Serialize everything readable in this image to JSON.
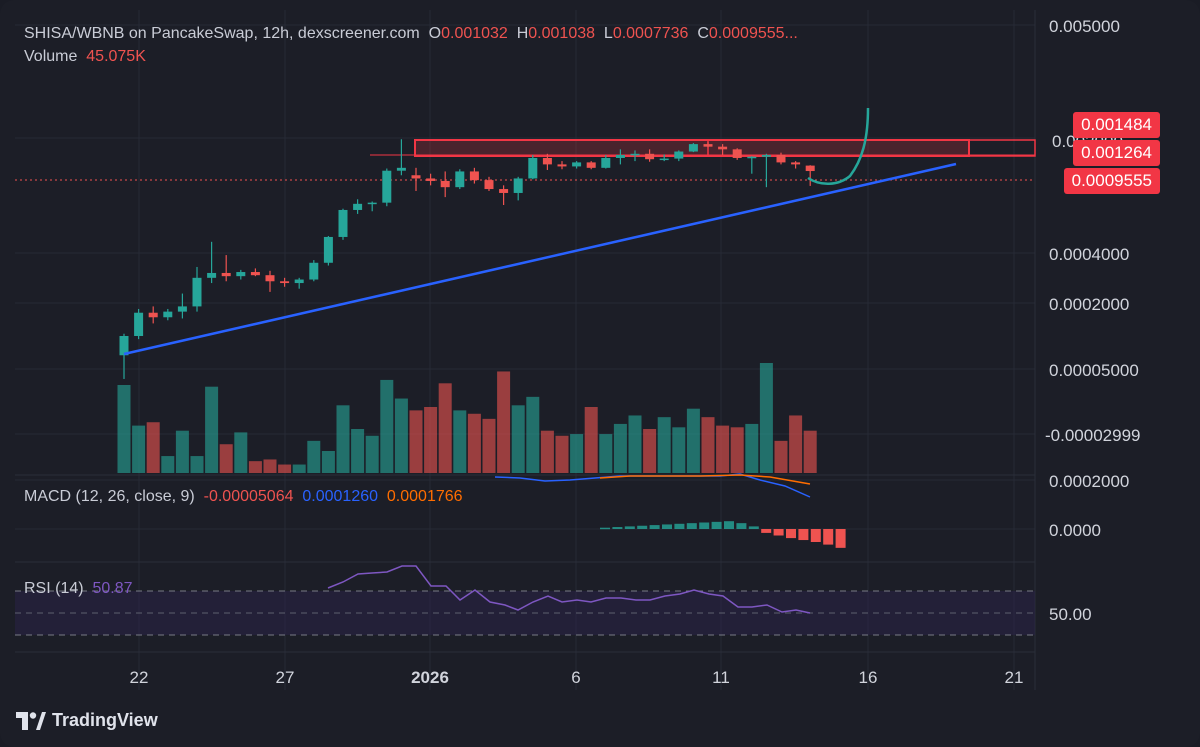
{
  "header": {
    "symbol": "SHISA/WBNB on PancakeSwap, 12h, dexscreener.com",
    "o_label": "O",
    "o_value": "0.001032",
    "h_label": "H",
    "h_value": "0.001038",
    "l_label": "L",
    "l_value": "0.0007736",
    "c_label": "C",
    "c_value": "0.0009555...",
    "volume_label": "Volume",
    "volume_value": "45.075K"
  },
  "macd_legend": {
    "label": "MACD (12, 26, close, 9)",
    "v1": "-0.00005064",
    "v2": "0.0001260",
    "v3": "0.0001766"
  },
  "rsi_legend": {
    "label": "RSI (14)",
    "value": "50.87"
  },
  "price_axis": {
    "top": "0.005000",
    "t1": "0.0004000",
    "t2": "0.0002000",
    "t3": "0.00005000",
    "t4": "-0.00002999",
    "macd_top": "0.0002000",
    "macd_zero": "0.0000",
    "rsi_mid": "50.00",
    "hidden_top": "0.002000"
  },
  "price_tags": {
    "resist_top": "0.001484",
    "resist_low": "0.001264",
    "current": "0.0009555"
  },
  "x_axis": [
    "22",
    "27",
    "2026",
    "6",
    "11",
    "16",
    "21"
  ],
  "brand": {
    "name": "TradingView"
  },
  "colors": {
    "up": "#26a69a",
    "down": "#ef5350",
    "trendline": "#2962ff",
    "zone": "#f23645",
    "projection": "#26a69a",
    "macd_line": "#2962ff",
    "signal_line": "#ff6d00",
    "rsi": "#7e57c2"
  },
  "chart_data": {
    "type": "candlestick",
    "title": "SHISA/WBNB on PancakeSwap, 12h, dexscreener.com",
    "y_scale": "log",
    "candles": [
      {
        "o": 7e-05,
        "h": 9.5e-05,
        "l": 5e-05,
        "c": 9.2e-05
      },
      {
        "o": 9.2e-05,
        "h": 0.000135,
        "l": 8.8e-05,
        "c": 0.000128
      },
      {
        "o": 0.000128,
        "h": 0.00014,
        "l": 0.00011,
        "c": 0.00012
      },
      {
        "o": 0.00012,
        "h": 0.000135,
        "l": 0.000115,
        "c": 0.00013
      },
      {
        "o": 0.00013,
        "h": 0.000168,
        "l": 0.000118,
        "c": 0.00014
      },
      {
        "o": 0.00014,
        "h": 0.000245,
        "l": 0.00013,
        "c": 0.00021
      },
      {
        "o": 0.00021,
        "h": 0.00035,
        "l": 0.000195,
        "c": 0.000225
      },
      {
        "o": 0.000225,
        "h": 0.00029,
        "l": 0.0002,
        "c": 0.000215
      },
      {
        "o": 0.000215,
        "h": 0.000235,
        "l": 0.000205,
        "c": 0.000228
      },
      {
        "o": 0.000228,
        "h": 0.00024,
        "l": 0.000215,
        "c": 0.000218
      },
      {
        "o": 0.000218,
        "h": 0.000232,
        "l": 0.000172,
        "c": 0.0002
      },
      {
        "o": 0.0002,
        "h": 0.00021,
        "l": 0.000185,
        "c": 0.000195
      },
      {
        "o": 0.000195,
        "h": 0.00021,
        "l": 0.00018,
        "c": 0.000205
      },
      {
        "o": 0.000205,
        "h": 0.00027,
        "l": 0.0002,
        "c": 0.00026
      },
      {
        "o": 0.00026,
        "h": 0.00038,
        "l": 0.00025,
        "c": 0.000375
      },
      {
        "o": 0.000375,
        "h": 0.00056,
        "l": 0.00036,
        "c": 0.00055
      },
      {
        "o": 0.00055,
        "h": 0.00064,
        "l": 0.00052,
        "c": 0.0006
      },
      {
        "o": 0.0006,
        "h": 0.00062,
        "l": 0.00054,
        "c": 0.00061
      },
      {
        "o": 0.00061,
        "h": 0.00099,
        "l": 0.00058,
        "c": 0.00096
      },
      {
        "o": 0.00096,
        "h": 0.0015,
        "l": 0.0009,
        "c": 0.001
      },
      {
        "o": 0.0009,
        "h": 0.001,
        "l": 0.00072,
        "c": 0.00086
      },
      {
        "o": 0.00086,
        "h": 0.00092,
        "l": 0.00078,
        "c": 0.00083
      },
      {
        "o": 0.00083,
        "h": 0.00095,
        "l": 0.00066,
        "c": 0.00076
      },
      {
        "o": 0.00076,
        "h": 0.00098,
        "l": 0.00074,
        "c": 0.00095
      },
      {
        "o": 0.00095,
        "h": 0.001,
        "l": 0.0008,
        "c": 0.00084
      },
      {
        "o": 0.00084,
        "h": 0.00088,
        "l": 0.00072,
        "c": 0.00074
      },
      {
        "o": 0.00074,
        "h": 0.00078,
        "l": 0.00059,
        "c": 0.0007
      },
      {
        "o": 0.0007,
        "h": 0.00088,
        "l": 0.00063,
        "c": 0.00086
      },
      {
        "o": 0.00086,
        "h": 0.0012,
        "l": 0.00085,
        "c": 0.00115
      },
      {
        "o": 0.00115,
        "h": 0.00122,
        "l": 0.00097,
        "c": 0.00105
      },
      {
        "o": 0.00105,
        "h": 0.0011,
        "l": 0.00098,
        "c": 0.00102
      },
      {
        "o": 0.00102,
        "h": 0.0011,
        "l": 0.00099,
        "c": 0.00108
      },
      {
        "o": 0.00108,
        "h": 0.0011,
        "l": 0.00098,
        "c": 0.001
      },
      {
        "o": 0.001,
        "h": 0.0012,
        "l": 0.00099,
        "c": 0.00115
      },
      {
        "o": 0.00115,
        "h": 0.0013,
        "l": 0.00105,
        "c": 0.0012
      },
      {
        "o": 0.0012,
        "h": 0.00128,
        "l": 0.0011,
        "c": 0.00122
      },
      {
        "o": 0.00122,
        "h": 0.0013,
        "l": 0.00109,
        "c": 0.00113
      },
      {
        "o": 0.00113,
        "h": 0.00121,
        "l": 0.0011,
        "c": 0.00114
      },
      {
        "o": 0.00114,
        "h": 0.00128,
        "l": 0.0011,
        "c": 0.00126
      },
      {
        "o": 0.00126,
        "h": 0.00142,
        "l": 0.00125,
        "c": 0.0014
      },
      {
        "o": 0.0014,
        "h": 0.00144,
        "l": 0.00134,
        "c": 0.00135
      },
      {
        "o": 0.00135,
        "h": 0.0014,
        "l": 0.0012,
        "c": 0.0013
      },
      {
        "o": 0.0013,
        "h": 0.00132,
        "l": 0.00112,
        "c": 0.00115
      },
      {
        "o": 0.00115,
        "h": 0.00118,
        "l": 0.00092,
        "c": 0.00117
      },
      {
        "o": 0.00117,
        "h": 0.00122,
        "l": 0.00076,
        "c": 0.0012
      },
      {
        "o": 0.0012,
        "h": 0.00124,
        "l": 0.00105,
        "c": 0.00108
      },
      {
        "o": 0.00108,
        "h": 0.0011,
        "l": 0.00099,
        "c": 0.00105
      },
      {
        "o": 0.001032,
        "h": 0.001038,
        "l": 0.0007736,
        "c": 0.0009555
      }
    ],
    "volume": [
      5.2,
      2.8,
      3.0,
      1.0,
      2.5,
      1.0,
      5.1,
      1.7,
      2.4,
      0.7,
      0.8,
      0.5,
      0.5,
      1.9,
      1.3,
      4.0,
      2.6,
      2.2,
      5.5,
      4.4,
      3.7,
      3.9,
      5.3,
      3.7,
      3.5,
      3.2,
      6.0,
      4.0,
      4.5,
      2.5,
      2.2,
      2.3,
      3.9,
      2.3,
      2.9,
      3.4,
      2.6,
      3.3,
      2.7,
      3.8,
      3.3,
      2.8,
      2.7,
      2.9,
      6.5,
      1.9,
      3.4,
      2.5
    ],
    "volume_unit": "relative",
    "x_ticks": [
      "22",
      "27",
      "2026",
      "6",
      "11",
      "16",
      "21"
    ],
    "resistance_zone": {
      "top": 0.001484,
      "bottom": 0.001264
    },
    "current_price": 0.0009555,
    "macd": {
      "macd": -5.064e-05,
      "signal": 0.000126,
      "hist": 0.0001766
    },
    "rsi": {
      "value": 50.87,
      "upper": 70,
      "mid": 50,
      "lower": 30
    }
  }
}
